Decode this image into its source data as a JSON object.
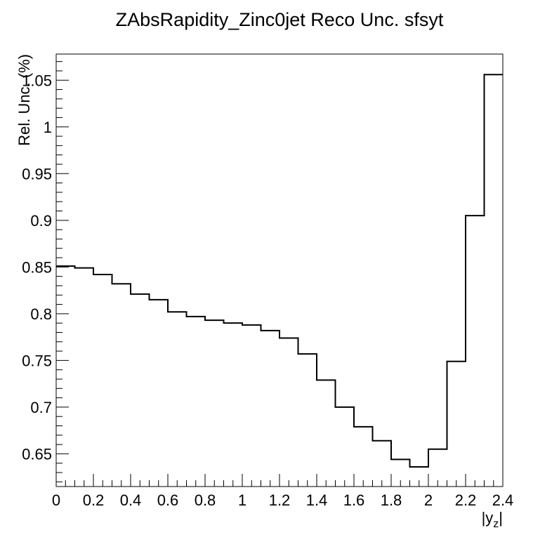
{
  "chart_data": {
    "type": "line",
    "style": "step-histogram",
    "title": "ZAbsRapidity_Zinc0jet Reco Unc. sfsyt",
    "xlabel": "|y_z|",
    "xlabel_main": "|y",
    "xlabel_sub": "z",
    "xlabel_end": "|",
    "ylabel": "Rel. Unc. (%)",
    "xlim": [
      0,
      2.4
    ],
    "ylim": [
      0.615,
      1.078
    ],
    "grid": false,
    "legend": "none",
    "line_color": "#000000",
    "x_ticks": [
      {
        "value": 0,
        "label": "0"
      },
      {
        "value": 0.2,
        "label": "0.2"
      },
      {
        "value": 0.4,
        "label": "0.4"
      },
      {
        "value": 0.6,
        "label": "0.6"
      },
      {
        "value": 0.8,
        "label": "0.8"
      },
      {
        "value": 1.0,
        "label": "1"
      },
      {
        "value": 1.2,
        "label": "1.2"
      },
      {
        "value": 1.4,
        "label": "1.4"
      },
      {
        "value": 1.6,
        "label": "1.6"
      },
      {
        "value": 1.8,
        "label": "1.8"
      },
      {
        "value": 2.0,
        "label": "2"
      },
      {
        "value": 2.2,
        "label": "2.2"
      },
      {
        "value": 2.4,
        "label": "2.4"
      }
    ],
    "y_ticks": [
      {
        "value": 0.65,
        "label": "0.65"
      },
      {
        "value": 0.7,
        "label": "0.7"
      },
      {
        "value": 0.75,
        "label": "0.75"
      },
      {
        "value": 0.8,
        "label": "0.8"
      },
      {
        "value": 0.85,
        "label": "0.85"
      },
      {
        "value": 0.9,
        "label": "0.9"
      },
      {
        "value": 0.95,
        "label": "0.95"
      },
      {
        "value": 1.0,
        "label": "1"
      },
      {
        "value": 1.05,
        "label": "1.05"
      }
    ],
    "bin_edges": [
      0,
      0.1,
      0.2,
      0.3,
      0.4,
      0.5,
      0.6,
      0.7,
      0.8,
      0.9,
      1.0,
      1.1,
      1.2,
      1.3,
      1.4,
      1.5,
      1.6,
      1.7,
      1.8,
      1.9,
      2.0,
      2.1,
      2.2,
      2.3,
      2.4
    ],
    "values": [
      0.851,
      0.849,
      0.842,
      0.832,
      0.821,
      0.815,
      0.802,
      0.797,
      0.793,
      0.79,
      0.788,
      0.782,
      0.774,
      0.757,
      0.729,
      0.7,
      0.679,
      0.664,
      0.644,
      0.636,
      0.655,
      0.749,
      0.905,
      1.056
    ]
  }
}
